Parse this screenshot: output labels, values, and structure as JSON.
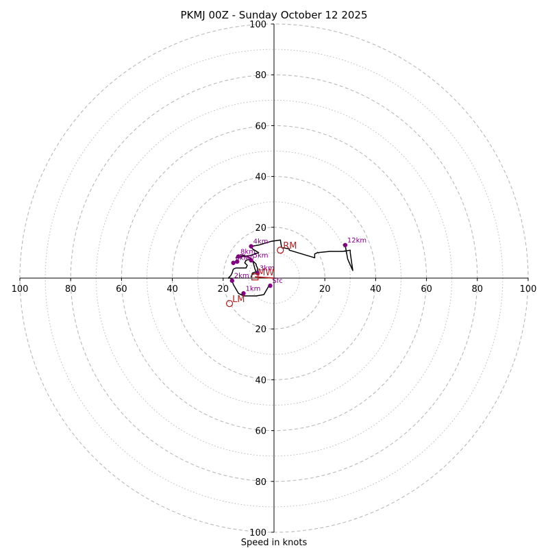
{
  "chart_data": {
    "type": "hodograph",
    "title": "PKMJ 00Z - Sunday October 12 2025",
    "xlabel": "Speed in knots",
    "range": [
      -100,
      100
    ],
    "rings_major": [
      20,
      40,
      60,
      80,
      100
    ],
    "rings_minor": [
      10,
      30,
      50,
      70,
      90
    ],
    "x_ticks": [
      {
        "value": -100,
        "label": "100"
      },
      {
        "value": -80,
        "label": "80"
      },
      {
        "value": -60,
        "label": "60"
      },
      {
        "value": -40,
        "label": "40"
      },
      {
        "value": -20,
        "label": "20"
      },
      {
        "value": 20,
        "label": "20"
      },
      {
        "value": 40,
        "label": "40"
      },
      {
        "value": 60,
        "label": "60"
      },
      {
        "value": 80,
        "label": "80"
      },
      {
        "value": 100,
        "label": "100"
      }
    ],
    "y_ticks": [
      {
        "value": 100,
        "label": "100"
      },
      {
        "value": 80,
        "label": "80"
      },
      {
        "value": 60,
        "label": "60"
      },
      {
        "value": 40,
        "label": "40"
      },
      {
        "value": 20,
        "label": "20"
      },
      {
        "value": -20,
        "label": "20"
      },
      {
        "value": -40,
        "label": "40"
      },
      {
        "value": -60,
        "label": "60"
      },
      {
        "value": -80,
        "label": "80"
      },
      {
        "value": -100,
        "label": "100"
      }
    ],
    "trace": [
      [
        -2.0,
        -3.0
      ],
      [
        -4.0,
        -6.5
      ],
      [
        -7.0,
        -7.0
      ],
      [
        -11.0,
        -7.0
      ],
      [
        -12.0,
        -7.0
      ],
      [
        -13.0,
        -6.5
      ],
      [
        -14.0,
        -6.0
      ],
      [
        -16.0,
        -2.5
      ],
      [
        -16.5,
        -1.0
      ],
      [
        -17.0,
        0.0
      ],
      [
        -18.0,
        0.0
      ],
      [
        -17.0,
        1.0
      ],
      [
        -16.5,
        2.0
      ],
      [
        -16.0,
        3.5
      ],
      [
        -15.0,
        4.0
      ],
      [
        -11.0,
        4.0
      ],
      [
        -10.5,
        5.0
      ],
      [
        -11.5,
        6.0
      ],
      [
        -11.0,
        7.0
      ],
      [
        -9.0,
        7.5
      ],
      [
        -8.5,
        7.0
      ],
      [
        -8.0,
        5.5
      ],
      [
        -7.5,
        3.5
      ],
      [
        -7.0,
        2.5
      ],
      [
        -8.5,
        2.0
      ],
      [
        -9.0,
        0.5
      ],
      [
        -8.5,
        1.5
      ],
      [
        -6.5,
        2.0
      ],
      [
        -6.5,
        4.0
      ],
      [
        -7.0,
        5.0
      ],
      [
        -7.0,
        5.5
      ],
      [
        -8.0,
        6.5
      ],
      [
        -9.0,
        7.0
      ],
      [
        -9.5,
        8.0
      ],
      [
        -12.0,
        9.0
      ],
      [
        -14.0,
        8.5
      ],
      [
        -15.0,
        8.0
      ],
      [
        -9.0,
        9.0
      ],
      [
        -6.0,
        10.0
      ],
      [
        -8.5,
        11.5
      ],
      [
        -9.0,
        12.5
      ],
      [
        -6.0,
        13.0
      ],
      [
        -1.0,
        14.5
      ],
      [
        2.5,
        15.0
      ],
      [
        3.0,
        12.0
      ],
      [
        6.0,
        11.5
      ],
      [
        6.0,
        11.0
      ],
      [
        16.0,
        8.0
      ],
      [
        16.0,
        9.5
      ],
      [
        17.0,
        10.0
      ],
      [
        22.0,
        10.5
      ],
      [
        27.0,
        10.5
      ],
      [
        30.0,
        11.0
      ],
      [
        30.0,
        10.0
      ],
      [
        31.0,
        3.0
      ],
      [
        29.0,
        7.5
      ],
      [
        28.0,
        13.0
      ]
    ],
    "heights": [
      {
        "label": "Sfc",
        "u": -1.5,
        "v": -3.0
      },
      {
        "label": "1km",
        "u": -12.0,
        "v": -6.0
      },
      {
        "label": "2km",
        "u": -16.5,
        "v": -1.0
      },
      {
        "label": "3km",
        "u": -6.5,
        "v": 2.0
      },
      {
        "label": "4km",
        "u": -9.0,
        "v": 12.5
      },
      {
        "label": "5km",
        "u": -9.0,
        "v": 7.0
      },
      {
        "label": "6km",
        "u": -16.0,
        "v": 6.0
      },
      {
        "label": "7km",
        "u": -14.5,
        "v": 6.5
      },
      {
        "label": "8km",
        "u": -14.0,
        "v": 8.5
      },
      {
        "label": "12km",
        "u": 28.0,
        "v": 13.0
      }
    ],
    "motions": [
      {
        "label": "RM",
        "u": 2.5,
        "v": 11.0
      },
      {
        "label": "LM",
        "u": -17.5,
        "v": -10.0
      },
      {
        "label": "MW",
        "u": -7.5,
        "v": 0.5
      }
    ],
    "mean_wind_vector": {
      "u": -7.5,
      "v": 0.5
    },
    "colors": {
      "trace": "#000000",
      "height_points": "#800080",
      "motion": "#b22222",
      "grid": "#b8b8b8",
      "axis": "#000000"
    }
  }
}
